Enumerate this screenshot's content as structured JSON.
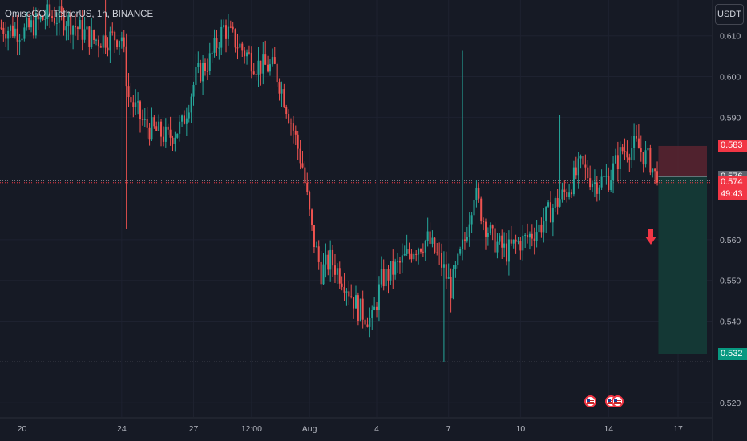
{
  "symbol": {
    "title": "OmiseGO / TetherUS, 1h, BINANCE"
  },
  "currency": "USDT",
  "chart_data": {
    "type": "candlestick",
    "y_ticks": [
      "0.610",
      "0.600",
      "0.590",
      "0.560",
      "0.550",
      "0.540",
      "0.520"
    ],
    "y_tick_values": [
      0.61,
      0.6,
      0.59,
      0.56,
      0.55,
      0.54,
      0.52
    ],
    "ylim": [
      0.5165,
      0.6188
    ],
    "x_ticks": [
      "20",
      "24",
      "27",
      "12:00",
      "Aug",
      "4",
      "7",
      "10",
      "14",
      "17"
    ],
    "x_tick_index": [
      9,
      52,
      83,
      108,
      133,
      162,
      193,
      224,
      262,
      292
    ],
    "last_index": 283,
    "x_slots": 307,
    "price_labels": {
      "stop_loss": "0.583",
      "current": "0.576",
      "last": "0.574",
      "countdown": "49:43",
      "take_profit": "0.532"
    },
    "levels": {
      "stop_loss": 0.583,
      "entry": 0.5755,
      "last": 0.574,
      "take_profit": 0.532,
      "dotted_high": 0.5745,
      "dotted_low": 0.53
    },
    "position": {
      "side": "short",
      "start_index": 284,
      "end_index": 330
    },
    "colors": {
      "up": "#26a69a",
      "down": "#ef5350",
      "loss_zone": "#5b2430",
      "profit_zone": "#143a36",
      "grid": "#1e2230"
    },
    "anchors": [
      [
        0,
        0.612
      ],
      [
        10,
        0.611
      ],
      [
        20,
        0.615
      ],
      [
        28,
        0.614
      ],
      [
        40,
        0.609
      ],
      [
        52,
        0.61
      ],
      [
        55,
        0.595
      ],
      [
        62,
        0.588
      ],
      [
        72,
        0.585
      ],
      [
        78,
        0.588
      ],
      [
        84,
        0.6
      ],
      [
        90,
        0.604
      ],
      [
        96,
        0.612
      ],
      [
        102,
        0.608
      ],
      [
        110,
        0.603
      ],
      [
        118,
        0.602
      ],
      [
        122,
        0.595
      ],
      [
        126,
        0.587
      ],
      [
        130,
        0.578
      ],
      [
        134,
        0.562
      ],
      [
        138,
        0.552
      ],
      [
        142,
        0.555
      ],
      [
        148,
        0.55
      ],
      [
        154,
        0.543
      ],
      [
        160,
        0.54
      ],
      [
        164,
        0.55
      ],
      [
        172,
        0.554
      ],
      [
        178,
        0.558
      ],
      [
        184,
        0.56
      ],
      [
        190,
        0.554
      ],
      [
        194,
        0.548
      ],
      [
        200,
        0.56
      ],
      [
        204,
        0.572
      ],
      [
        208,
        0.565
      ],
      [
        212,
        0.56
      ],
      [
        218,
        0.557
      ],
      [
        222,
        0.559
      ],
      [
        226,
        0.56
      ],
      [
        232,
        0.563
      ],
      [
        238,
        0.568
      ],
      [
        244,
        0.572
      ],
      [
        250,
        0.578
      ],
      [
        256,
        0.574
      ],
      [
        262,
        0.575
      ],
      [
        268,
        0.582
      ],
      [
        274,
        0.583
      ],
      [
        280,
        0.579
      ],
      [
        283,
        0.574
      ]
    ],
    "spikes": [
      {
        "index": 45,
        "high": 0.619
      },
      {
        "index": 54,
        "low": 0.5626
      },
      {
        "index": 191,
        "low": 0.53
      },
      {
        "index": 199,
        "high": 0.6065
      },
      {
        "index": 241,
        "high": 0.5905
      }
    ]
  },
  "events": [
    {
      "name": "event-icon-us-1",
      "index": 254
    },
    {
      "name": "event-icon-us-2",
      "index": 263
    },
    {
      "name": "event-icon-us-3",
      "index": 266
    }
  ]
}
